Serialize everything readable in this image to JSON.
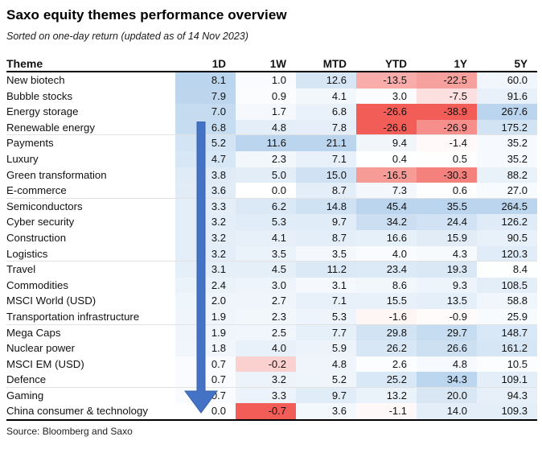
{
  "page": {
    "title": "Saxo equity themes performance overview",
    "subtitle": "Sorted on one-day return (updated as of 14 Nov 2023)",
    "source": "Source: Bloomberg and Saxo"
  },
  "chart_data": {
    "type": "heatmap",
    "title": "Saxo equity themes performance overview",
    "subtitle": "Sorted on one-day return (updated as of 14 Nov 2023)",
    "columns": [
      "Theme",
      "1D",
      "1W",
      "MTD",
      "YTD",
      "1Y",
      "5Y"
    ],
    "rows": [
      {
        "theme": "New biotech",
        "values": [
          8.1,
          1.0,
          12.6,
          -13.5,
          -22.5,
          60.0
        ]
      },
      {
        "theme": "Bubble stocks",
        "values": [
          7.9,
          0.9,
          4.1,
          3.0,
          -7.5,
          91.6
        ]
      },
      {
        "theme": "Energy storage",
        "values": [
          7.0,
          1.7,
          6.8,
          -26.6,
          -38.9,
          267.6
        ]
      },
      {
        "theme": "Renewable energy",
        "values": [
          6.8,
          4.8,
          7.8,
          -26.6,
          -26.9,
          175.2
        ]
      },
      {
        "theme": "Payments",
        "values": [
          5.2,
          11.6,
          21.1,
          9.4,
          -1.4,
          35.2
        ]
      },
      {
        "theme": "Luxury",
        "values": [
          4.7,
          2.3,
          7.1,
          0.4,
          0.5,
          35.2
        ]
      },
      {
        "theme": "Green transformation",
        "values": [
          3.8,
          5.0,
          15.0,
          -16.5,
          -30.3,
          88.2
        ]
      },
      {
        "theme": "E-commerce",
        "values": [
          3.6,
          0.0,
          8.7,
          7.3,
          0.6,
          27.0
        ]
      },
      {
        "theme": "Semiconductors",
        "values": [
          3.3,
          6.2,
          14.8,
          45.4,
          35.5,
          264.5
        ]
      },
      {
        "theme": "Cyber security",
        "values": [
          3.2,
          5.3,
          9.7,
          34.2,
          24.4,
          126.2
        ]
      },
      {
        "theme": "Construction",
        "values": [
          3.2,
          4.1,
          8.7,
          16.6,
          15.9,
          90.5
        ]
      },
      {
        "theme": "Logistics",
        "values": [
          3.2,
          3.5,
          3.5,
          4.0,
          4.3,
          120.3
        ]
      },
      {
        "theme": "Travel",
        "values": [
          3.1,
          4.5,
          11.2,
          23.4,
          19.3,
          8.4
        ]
      },
      {
        "theme": "Commodities",
        "values": [
          2.4,
          3.0,
          3.1,
          8.6,
          9.3,
          108.5
        ]
      },
      {
        "theme": "MSCI World (USD)",
        "values": [
          2.0,
          2.7,
          7.1,
          15.5,
          13.5,
          58.8
        ]
      },
      {
        "theme": "Transportation infrastructure",
        "values": [
          1.9,
          2.3,
          5.3,
          -1.6,
          -0.9,
          25.9
        ]
      },
      {
        "theme": "Mega Caps",
        "values": [
          1.9,
          2.5,
          7.7,
          29.8,
          29.7,
          148.7
        ]
      },
      {
        "theme": "Nuclear power",
        "values": [
          1.8,
          4.0,
          5.9,
          26.2,
          26.6,
          161.2
        ]
      },
      {
        "theme": "MSCI EM (USD)",
        "values": [
          0.7,
          -0.2,
          4.8,
          2.6,
          4.8,
          10.5
        ]
      },
      {
        "theme": "Defence",
        "values": [
          0.7,
          3.2,
          5.2,
          25.2,
          34.3,
          109.1
        ]
      },
      {
        "theme": "Gaming",
        "values": [
          0.7,
          3.3,
          9.7,
          13.2,
          20.0,
          94.3
        ]
      },
      {
        "theme": "China consumer & technology",
        "values": [
          0.0,
          -0.7,
          3.6,
          -1.1,
          14.0,
          109.3
        ]
      }
    ],
    "value_format": "one-decimal",
    "heatmap_scale": "per-column: white at 0, full blue at column max, full red at column min",
    "colors": {
      "positive_max": "#bbd5ee",
      "negative_max": "#f25d58",
      "arrow": "#4472c4",
      "arrow_stroke": "#3b63aa",
      "separator": "#e2e2e2"
    },
    "group_separators_after_rows": [
      4,
      8,
      12,
      16,
      20
    ],
    "sort_arrow": {
      "direction": "down",
      "column": "1D"
    },
    "legend_position": "none",
    "grid": "group separators only"
  }
}
